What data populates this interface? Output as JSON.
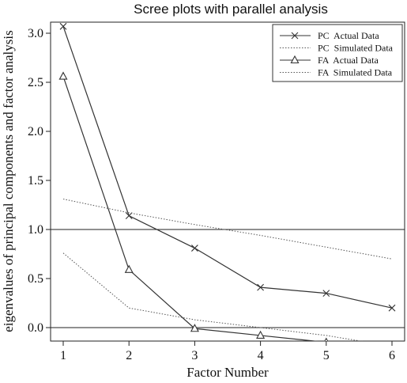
{
  "chart_data": {
    "type": "line",
    "title": "Scree plots with parallel analysis",
    "xlabel": "Factor Number",
    "ylabel": "eigenvalues of principal components and factor analysis",
    "x": [
      1,
      2,
      3,
      4,
      5,
      6
    ],
    "xlim": [
      0.8,
      6.2
    ],
    "ylim": [
      -0.2,
      3.2
    ],
    "xticks": [
      "1",
      "2",
      "3",
      "4",
      "5",
      "6"
    ],
    "yticks": [
      "0.0",
      "0.5",
      "1.0",
      "1.5",
      "2.0",
      "2.5",
      "3.0"
    ],
    "reference_lines": [
      0,
      1
    ],
    "legend_position": "top-right",
    "series": [
      {
        "name": "PC  Actual Data",
        "style": "solid",
        "marker": "x",
        "color": "#333333",
        "values": [
          3.07,
          1.14,
          0.81,
          0.41,
          0.35,
          0.2
        ]
      },
      {
        "name": "PC  Simulated Data",
        "style": "dotted",
        "marker": "none",
        "color": "#555555",
        "values": [
          1.31,
          1.17,
          1.05,
          0.94,
          0.82,
          0.7
        ]
      },
      {
        "name": "FA  Actual Data",
        "style": "solid",
        "marker": "triangle",
        "color": "#333333",
        "values": [
          2.56,
          0.59,
          -0.01,
          -0.08,
          -0.15,
          null
        ]
      },
      {
        "name": "FA  Simulated Data",
        "style": "dotted",
        "marker": "none",
        "color": "#555555",
        "values": [
          0.76,
          0.2,
          0.08,
          0.0,
          -0.08,
          -0.19
        ]
      }
    ]
  }
}
